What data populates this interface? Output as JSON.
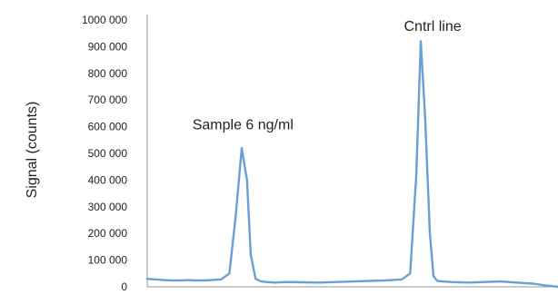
{
  "chart_data": {
    "type": "line",
    "title": "",
    "xlabel": "",
    "ylabel": "Signal (counts)",
    "ylim": [
      0,
      1000000
    ],
    "xlim": [
      0,
      100
    ],
    "grid": false,
    "legend": "none",
    "yticks": [
      {
        "value": 0,
        "label": "0"
      },
      {
        "value": 100000,
        "label": "100 000"
      },
      {
        "value": 200000,
        "label": "200 000"
      },
      {
        "value": 300000,
        "label": "300 000"
      },
      {
        "value": 400000,
        "label": "400 000"
      },
      {
        "value": 500000,
        "label": "500 000"
      },
      {
        "value": 600000,
        "label": "600 000"
      },
      {
        "value": 700000,
        "label": "700 000"
      },
      {
        "value": 800000,
        "label": "800 000"
      },
      {
        "value": 900000,
        "label": "900 000"
      },
      {
        "value": 1000000,
        "label": "1000 000"
      }
    ],
    "series": [
      {
        "color": "#6a9fd6",
        "x": [
          0,
          2,
          4,
          6,
          8,
          10,
          12,
          14,
          16,
          18,
          20,
          21.5,
          23,
          24.3,
          25.2,
          26.4,
          27.7,
          29,
          31,
          34,
          38,
          42,
          46,
          50,
          54,
          58,
          62,
          64,
          65.5,
          66.6,
          67.7,
          68.8,
          69.7,
          70.6,
          72,
          74,
          78,
          82,
          86,
          90,
          94,
          97,
          100
        ],
        "y": [
          30000,
          28000,
          25000,
          24000,
          24000,
          25000,
          24000,
          24000,
          26000,
          28000,
          50000,
          260000,
          520000,
          400000,
          120000,
          30000,
          20000,
          18000,
          16000,
          18000,
          17000,
          16000,
          18000,
          20000,
          22000,
          24000,
          28000,
          50000,
          420000,
          920000,
          620000,
          200000,
          40000,
          22000,
          20000,
          18000,
          16000,
          18000,
          20000,
          16000,
          12000,
          5000,
          0
        ]
      }
    ],
    "annotations": [
      {
        "text": "Sample 6 ng/ml",
        "x": 11,
        "y": 590000
      },
      {
        "text": "Cntrl line",
        "x": 62.5,
        "y": 960000
      }
    ]
  }
}
